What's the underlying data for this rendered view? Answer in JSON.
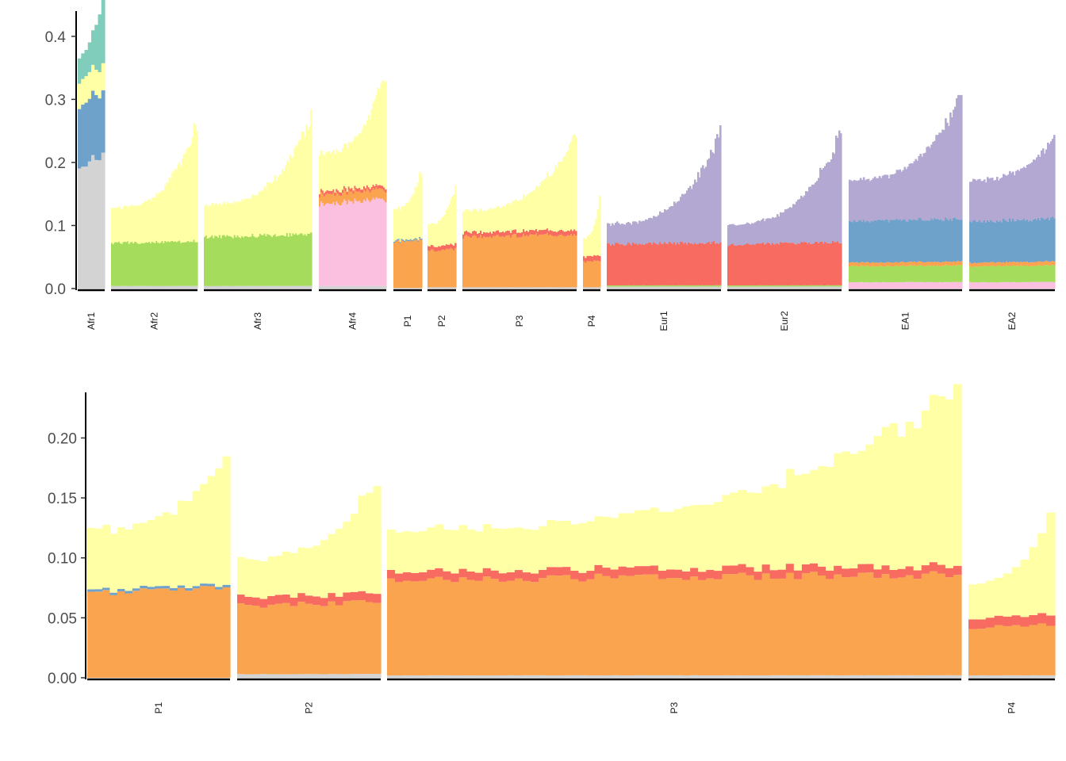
{
  "colors": {
    "c1": "#d3d3d3",
    "c2": "#6fa2cb",
    "c3": "#ffffa6",
    "c4": "#80cdbb",
    "c5": "#a6dc5c",
    "c6": "#fbc0e0",
    "c7": "#fba44f",
    "c8": "#f76b61",
    "c9": "#b2a8d1"
  },
  "chart_data": [
    {
      "type": "stacked-bar",
      "ylim": [
        0,
        0.44
      ],
      "yticks": [
        0.0,
        0.1,
        0.2,
        0.3,
        0.4
      ],
      "ytick_labels": [
        "0.0",
        "0.1",
        "0.2",
        "0.3",
        "0.4"
      ],
      "groups": [
        {
          "label": "Afr1",
          "n": 8,
          "components": [
            {
              "c": "c1",
              "v": 0.198
            },
            {
              "c": "c2",
              "v": 0.098
            },
            {
              "c": "c3",
              "v": 0.04
            },
            {
              "c": "c4",
              "v": 0.02
            }
          ],
          "tail": [
            0.02,
            0.08
          ]
        },
        {
          "label": "Afr2",
          "n": 60,
          "components": [
            {
              "c": "c1",
              "v": 0.004
            },
            {
              "c": "c5",
              "v": 0.068
            },
            {
              "c": "c3",
              "v": 0.055
            }
          ],
          "tail": [
            0.0,
            0.13
          ]
        },
        {
          "label": "Afr3",
          "n": 72,
          "components": [
            {
              "c": "c1",
              "v": 0.004
            },
            {
              "c": "c5",
              "v": 0.078
            },
            {
              "c": "c3",
              "v": 0.05
            }
          ],
          "tail": [
            0.0,
            0.13
          ]
        },
        {
          "label": "Afr4",
          "n": 44,
          "components": [
            {
              "c": "c1",
              "v": 0.004
            },
            {
              "c": "c6",
              "v": 0.13
            },
            {
              "c": "c7",
              "v": 0.015
            },
            {
              "c": "c8",
              "v": 0.005
            },
            {
              "c": "c3",
              "v": 0.05
            }
          ],
          "tail": [
            0.01,
            0.12
          ]
        },
        {
          "label": "P1",
          "n": 19,
          "components": [
            {
              "c": "c1",
              "v": 0.001
            },
            {
              "c": "c7",
              "v": 0.073
            },
            {
              "c": "c2",
              "v": 0.002
            },
            {
              "c": "c3",
              "v": 0.05
            }
          ],
          "tail": [
            0.0,
            0.055
          ]
        },
        {
          "label": "P2",
          "n": 19,
          "components": [
            {
              "c": "c1",
              "v": 0.002
            },
            {
              "c": "c7",
              "v": 0.058
            },
            {
              "c": "c8",
              "v": 0.007
            },
            {
              "c": "c3",
              "v": 0.035
            }
          ],
          "tail": [
            0.0,
            0.058
          ]
        },
        {
          "label": "P3",
          "n": 72,
          "components": [
            {
              "c": "c1",
              "v": 0.002
            },
            {
              "c": "c7",
              "v": 0.08
            },
            {
              "c": "c8",
              "v": 0.007
            },
            {
              "c": "c3",
              "v": 0.035
            }
          ],
          "tail": [
            0.0,
            0.115
          ]
        },
        {
          "label": "P4",
          "n": 10,
          "components": [
            {
              "c": "c1",
              "v": 0.002
            },
            {
              "c": "c7",
              "v": 0.04
            },
            {
              "c": "c8",
              "v": 0.008
            },
            {
              "c": "c3",
              "v": 0.03
            }
          ],
          "tail": [
            0.0,
            0.06
          ]
        },
        {
          "label": "Eur1",
          "n": 72,
          "components": [
            {
              "c": "c1",
              "v": 0.003
            },
            {
              "c": "c5",
              "v": 0.002
            },
            {
              "c": "c8",
              "v": 0.065
            },
            {
              "c": "c9",
              "v": 0.032
            }
          ],
          "tail": [
            0.0,
            0.14
          ]
        },
        {
          "label": "Eur2",
          "n": 72,
          "components": [
            {
              "c": "c1",
              "v": 0.003
            },
            {
              "c": "c5",
              "v": 0.002
            },
            {
              "c": "c8",
              "v": 0.065
            },
            {
              "c": "c9",
              "v": 0.032
            }
          ],
          "tail": [
            0.0,
            0.14
          ]
        },
        {
          "label": "EA1",
          "n": 72,
          "components": [
            {
              "c": "c6",
              "v": 0.01
            },
            {
              "c": "c5",
              "v": 0.025
            },
            {
              "c": "c7",
              "v": 0.006
            },
            {
              "c": "c2",
              "v": 0.065
            },
            {
              "c": "c9",
              "v": 0.065
            }
          ],
          "tail": [
            0.0,
            0.13
          ]
        },
        {
          "label": "EA2",
          "n": 54,
          "components": [
            {
              "c": "c6",
              "v": 0.01
            },
            {
              "c": "c5",
              "v": 0.025
            },
            {
              "c": "c7",
              "v": 0.006
            },
            {
              "c": "c2",
              "v": 0.065
            },
            {
              "c": "c9",
              "v": 0.065
            }
          ],
          "tail": [
            0.0,
            0.06
          ]
        }
      ]
    },
    {
      "type": "stacked-bar",
      "ylim": [
        0,
        0.238
      ],
      "yticks": [
        0.0,
        0.05,
        0.1,
        0.15,
        0.2
      ],
      "ytick_labels": [
        "0.00",
        "0.05",
        "0.10",
        "0.15",
        "0.20"
      ],
      "groups": [
        {
          "label": "P1",
          "n": 19,
          "components": [
            {
              "c": "c1",
              "v": 0.0
            },
            {
              "c": "c7",
              "v": 0.071
            },
            {
              "c": "c2",
              "v": 0.002
            },
            {
              "c": "c3",
              "v": 0.05
            }
          ],
          "tail": [
            0.0,
            0.055
          ]
        },
        {
          "label": "P2",
          "n": 19,
          "components": [
            {
              "c": "c1",
              "v": 0.003
            },
            {
              "c": "c7",
              "v": 0.057
            },
            {
              "c": "c8",
              "v": 0.007
            },
            {
              "c": "c3",
              "v": 0.032
            }
          ],
          "tail": [
            0.0,
            0.06
          ]
        },
        {
          "label": "P3",
          "n": 72,
          "components": [
            {
              "c": "c1",
              "v": 0.002
            },
            {
              "c": "c7",
              "v": 0.08
            },
            {
              "c": "c8",
              "v": 0.007
            },
            {
              "c": "c3",
              "v": 0.035
            }
          ],
          "tail": [
            0.0,
            0.11
          ]
        },
        {
          "label": "P4",
          "n": 10,
          "components": [
            {
              "c": "c1",
              "v": 0.002
            },
            {
              "c": "c7",
              "v": 0.04
            },
            {
              "c": "c8",
              "v": 0.008
            },
            {
              "c": "c3",
              "v": 0.03
            }
          ],
          "tail": [
            0.0,
            0.055
          ]
        }
      ]
    }
  ]
}
